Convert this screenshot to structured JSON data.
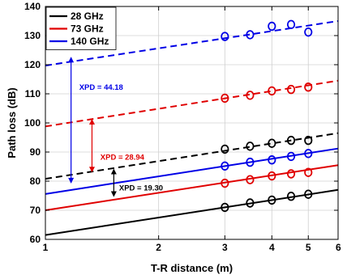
{
  "chart_data": {
    "type": "line",
    "title": "",
    "xlabel": "T-R distance (m)",
    "ylabel": "Path loss (dB)",
    "x_scale": "log",
    "xlim": [
      1,
      6
    ],
    "ylim": [
      60,
      140
    ],
    "grid": true,
    "legend_position": "top-left",
    "x_ticks": [
      1,
      2,
      3,
      4,
      5,
      6
    ],
    "x_tick_labels": [
      "1",
      "2",
      "3",
      "4",
      "5",
      "6"
    ],
    "y_ticks": [
      60,
      70,
      80,
      90,
      100,
      110,
      120,
      130,
      140
    ],
    "y_tick_labels": [
      "60",
      "70",
      "80",
      "90",
      "100",
      "110",
      "120",
      "130",
      "140"
    ],
    "colors": {
      "28 GHz": "#000000",
      "73 GHz": "#e00000",
      "140 GHz": "#0000e6"
    },
    "legend": [
      "28 GHz",
      "73 GHz",
      "140 GHz"
    ],
    "fit_lines": [
      {
        "name": "28 GHz co-pol fit",
        "color": "#000000",
        "style": "solid",
        "x": [
          1,
          6
        ],
        "y": [
          61.5,
          77
        ]
      },
      {
        "name": "28 GHz cross-pol fit",
        "color": "#000000",
        "style": "dashed",
        "x": [
          1,
          6
        ],
        "y": [
          80.8,
          96.5
        ]
      },
      {
        "name": "73 GHz co-pol fit",
        "color": "#e00000",
        "style": "solid",
        "x": [
          1,
          6
        ],
        "y": [
          70,
          85.5
        ]
      },
      {
        "name": "73 GHz cross-pol fit",
        "color": "#e00000",
        "style": "dashed",
        "x": [
          1,
          6
        ],
        "y": [
          98.8,
          114.5
        ]
      },
      {
        "name": "140 GHz co-pol fit",
        "color": "#0000e6",
        "style": "solid",
        "x": [
          1,
          6
        ],
        "y": [
          75.6,
          91.2
        ]
      },
      {
        "name": "140 GHz cross-pol fit",
        "color": "#0000e6",
        "style": "dashed",
        "x": [
          1,
          6
        ],
        "y": [
          119.7,
          135
        ]
      }
    ],
    "measured": [
      {
        "name": "28 GHz co-pol",
        "color": "#000000",
        "x": [
          3,
          3.5,
          4,
          4.5,
          5
        ],
        "y": [
          71,
          72.5,
          73.5,
          74.8,
          75.5
        ]
      },
      {
        "name": "28 GHz cross-pol",
        "color": "#000000",
        "x": [
          3,
          3.5,
          4,
          4.5,
          5
        ],
        "y": [
          91,
          92,
          93,
          94,
          94
        ]
      },
      {
        "name": "73 GHz co-pol",
        "color": "#e00000",
        "x": [
          3,
          3.5,
          4,
          4.5,
          5
        ],
        "y": [
          79.3,
          80.5,
          81.8,
          82.5,
          83
        ]
      },
      {
        "name": "73 GHz cross-pol",
        "color": "#e00000",
        "x": [
          3,
          3.5,
          4,
          4.5,
          5
        ],
        "y": [
          108.5,
          109.5,
          111,
          111.5,
          112.3
        ]
      },
      {
        "name": "140 GHz co-pol",
        "color": "#0000e6",
        "x": [
          3,
          3.5,
          4,
          4.5,
          5
        ],
        "y": [
          85.2,
          86.5,
          87.3,
          88.5,
          89.5
        ]
      },
      {
        "name": "140 GHz cross-pol",
        "color": "#0000e6",
        "x": [
          3,
          3.5,
          4,
          4.5,
          5
        ],
        "y": [
          129.7,
          130.3,
          133.2,
          133.8,
          131.2
        ]
      }
    ],
    "annotations": [
      {
        "text": "XPD = 19.30",
        "color": "#000000",
        "arrow_x": 1.52,
        "arrow_y": [
          74.6,
          84.3
        ],
        "text_x": 1.57,
        "text_y": 77.8
      },
      {
        "text": "XPD = 28.94",
        "color": "#e00000",
        "arrow_x": 1.33,
        "arrow_y": [
          83,
          101.4
        ],
        "text_x": 1.4,
        "text_y": 88.3
      },
      {
        "text": "XPD = 44.18",
        "color": "#0000e6",
        "arrow_x": 1.17,
        "arrow_y": [
          79.2,
          122.7
        ],
        "text_x": 1.23,
        "text_y": 112.3
      }
    ]
  }
}
